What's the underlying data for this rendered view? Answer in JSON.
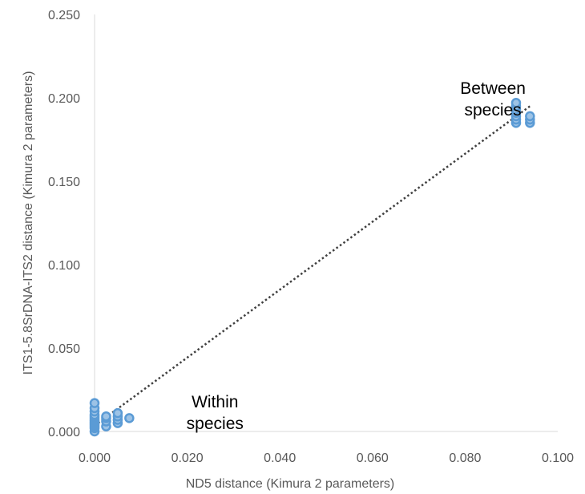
{
  "chart_data": {
    "type": "scatter",
    "xlabel": "ND5 distance (Kimura 2 parameters)",
    "ylabel": "ITS1-5.8SrDNA-ITS2 distance (Kimura 2 parameters)",
    "xlim": [
      0,
      0.1
    ],
    "ylim": [
      0,
      0.25
    ],
    "x_ticks": [
      "0.000",
      "0.020",
      "0.040",
      "0.060",
      "0.080",
      "0.100"
    ],
    "y_ticks": [
      "0.000",
      "0.050",
      "0.100",
      "0.150",
      "0.200",
      "0.250"
    ],
    "grid": false,
    "legend": "none",
    "marker_fill": "#9dc3e6",
    "marker_edge": "#5b9bd5",
    "trendline_color": "#404040",
    "trendline": {
      "style": "dotted",
      "x": [
        0,
        0.094
      ],
      "y": [
        0.0035,
        0.195
      ]
    },
    "annotations": [
      {
        "text": "Between\nspecies",
        "x": 0.086,
        "y": 0.2
      },
      {
        "text": "Within\nspecies",
        "x": 0.026,
        "y": 0.012
      }
    ],
    "series": [
      {
        "points": [
          [
            0,
            0.0
          ],
          [
            0,
            0.002
          ],
          [
            0,
            0.003
          ],
          [
            0,
            0.004
          ],
          [
            0,
            0.005
          ],
          [
            0,
            0.006
          ],
          [
            0,
            0.007
          ],
          [
            0,
            0.008
          ],
          [
            0,
            0.009
          ],
          [
            0,
            0.01
          ],
          [
            0,
            0.012
          ],
          [
            0,
            0.014
          ],
          [
            0,
            0.017
          ],
          [
            0.0025,
            0.003
          ],
          [
            0.0025,
            0.006
          ],
          [
            0.0025,
            0.008
          ],
          [
            0.0025,
            0.009
          ],
          [
            0.005,
            0.005
          ],
          [
            0.005,
            0.007
          ],
          [
            0.005,
            0.009
          ],
          [
            0.005,
            0.011
          ],
          [
            0.0075,
            0.008
          ],
          [
            0.091,
            0.185
          ],
          [
            0.091,
            0.187
          ],
          [
            0.091,
            0.189
          ],
          [
            0.091,
            0.191
          ],
          [
            0.091,
            0.193
          ],
          [
            0.091,
            0.195
          ],
          [
            0.091,
            0.197
          ],
          [
            0.094,
            0.185
          ],
          [
            0.094,
            0.187
          ],
          [
            0.094,
            0.189
          ]
        ]
      }
    ]
  }
}
